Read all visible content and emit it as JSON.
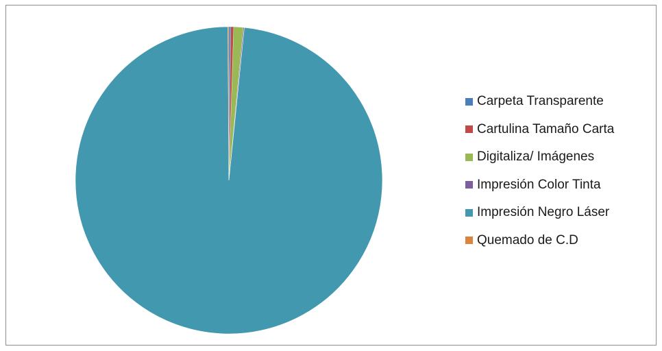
{
  "chart_data": {
    "type": "pie",
    "title": "",
    "legend_position": "right",
    "start_angle_deg": 0,
    "direction": "clockwise",
    "slices": [
      {
        "label": "Carpeta Transparente",
        "value": 0.2,
        "color": "#4a7ebb"
      },
      {
        "label": "Cartulina Tamaño Carta",
        "value": 0.3,
        "color": "#be4b48"
      },
      {
        "label": "Digitaliza/ Imágenes",
        "value": 1.0,
        "color": "#98b954"
      },
      {
        "label": "Impresión Color Tinta",
        "value": 0.1,
        "color": "#7d5fa0"
      },
      {
        "label": "Impresión Negro Láser",
        "value": 98.3,
        "color": "#4198af"
      },
      {
        "label": "Quemado de C.D",
        "value": 0.1,
        "color": "#db843d"
      }
    ]
  }
}
